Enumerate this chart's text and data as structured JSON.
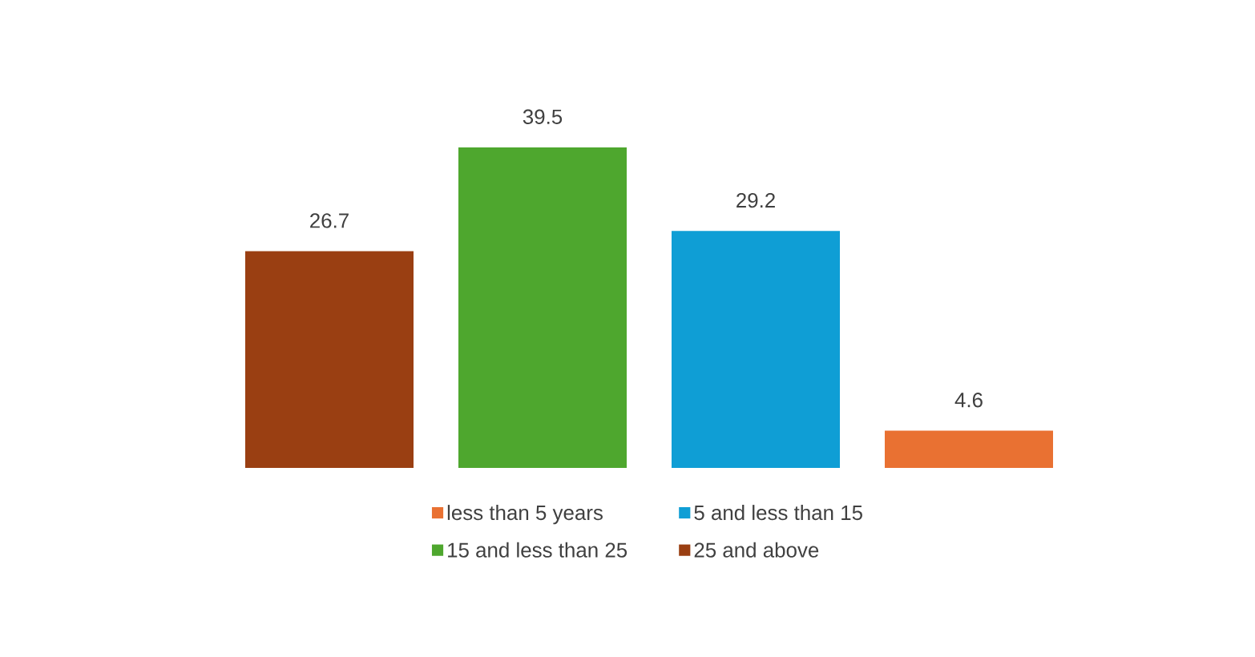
{
  "chart_data": {
    "type": "bar",
    "categories": [
      null
    ],
    "series": [
      {
        "name": "25 and above",
        "color": "#9a3f12",
        "values": [
          26.7
        ]
      },
      {
        "name": "15 and less than 25",
        "color": "#4ea72e",
        "values": [
          39.5
        ]
      },
      {
        "name": "5 and less than 15",
        "color": "#0f9ed5",
        "values": [
          29.2
        ]
      },
      {
        "name": "less than 5 years",
        "color": "#e97132",
        "values": [
          4.6
        ]
      }
    ],
    "data_labels": true,
    "legend": "bottom"
  }
}
